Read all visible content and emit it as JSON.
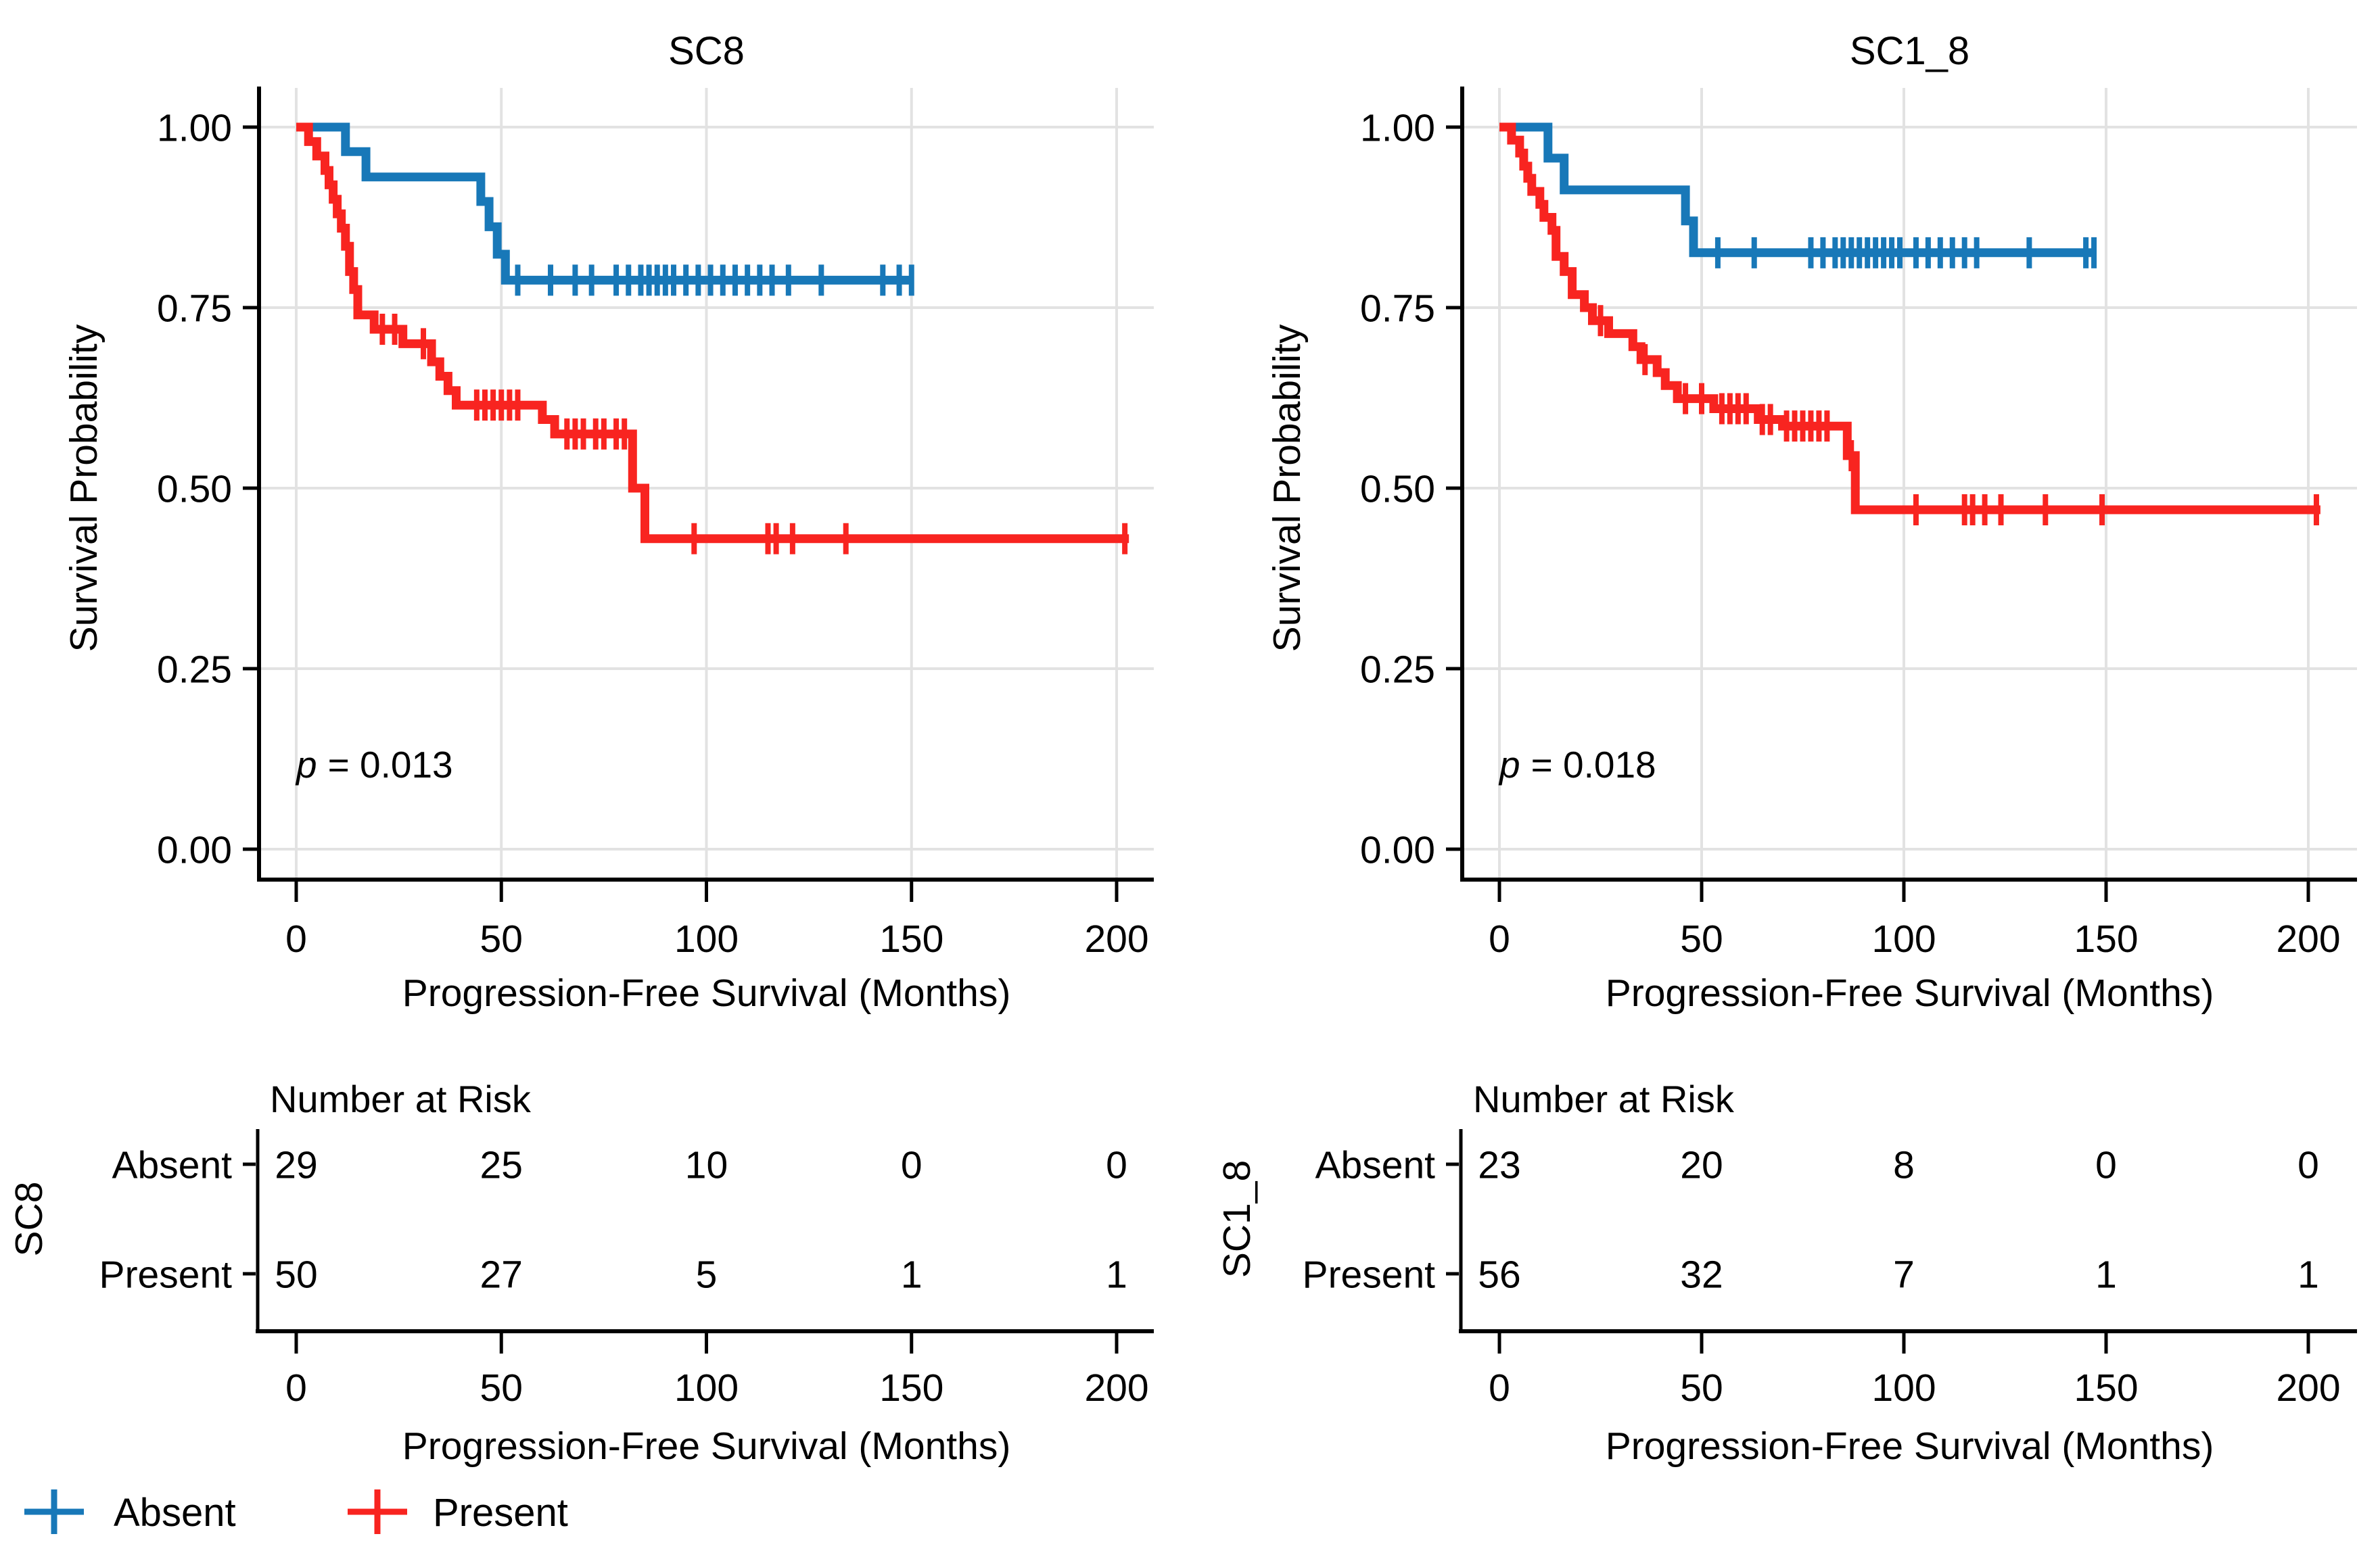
{
  "figure": {
    "background": "#ffffff",
    "colors": {
      "absent": "#1878b8",
      "present": "#f82420",
      "grid": "#e2e2e2",
      "axis": "#000000",
      "text": "#000000"
    },
    "legend": {
      "position": "bottom-left",
      "items": [
        {
          "label": "Absent",
          "color_key": "absent"
        },
        {
          "label": "Present",
          "color_key": "present"
        }
      ]
    },
    "chart_data": [
      {
        "type": "km_step",
        "title": "SC8",
        "xlabel": "Progression-Free Survival (Months)",
        "ylabel": "Survival Probability",
        "p_symbol": "p",
        "p_text": "= 0.013",
        "xlim": [
          0,
          210
        ],
        "ylim": [
          0,
          1
        ],
        "grid": "major",
        "x_ticks": [
          0,
          50,
          100,
          150,
          200
        ],
        "y_ticks": [
          {
            "label": "1.00",
            "value": 1
          },
          {
            "label": "0.75",
            "value": 0.75
          },
          {
            "label": "0.50",
            "value": 0.5
          },
          {
            "label": "0.25",
            "value": 0.25
          },
          {
            "label": "0.00",
            "value": 0
          }
        ],
        "series": [
          {
            "name": "Absent",
            "color_key": "absent",
            "steps": [
              [
                0,
                1
              ],
              [
                12,
                1
              ],
              [
                12,
                0.966
              ],
              [
                17,
                0.966
              ],
              [
                17,
                0.931
              ],
              [
                45,
                0.931
              ],
              [
                45,
                0.897
              ],
              [
                47,
                0.897
              ],
              [
                47,
                0.862
              ],
              [
                49,
                0.862
              ],
              [
                49,
                0.824
              ],
              [
                51,
                0.824
              ],
              [
                51,
                0.788
              ],
              [
                150,
                0.788
              ]
            ],
            "censor_times": [
              54,
              62,
              68,
              72,
              78,
              81,
              84,
              86,
              88,
              90,
              92,
              95,
              98,
              101,
              104,
              107,
              110,
              113,
              116,
              120,
              128,
              143,
              147,
              150
            ]
          },
          {
            "name": "Present",
            "color_key": "present",
            "steps": [
              [
                0,
                1
              ],
              [
                3,
                1
              ],
              [
                3,
                0.98
              ],
              [
                5,
                0.98
              ],
              [
                5,
                0.96
              ],
              [
                7,
                0.96
              ],
              [
                7,
                0.94
              ],
              [
                8,
                0.94
              ],
              [
                8,
                0.92
              ],
              [
                9,
                0.92
              ],
              [
                9,
                0.9
              ],
              [
                10,
                0.9
              ],
              [
                10,
                0.88
              ],
              [
                11,
                0.88
              ],
              [
                11,
                0.86
              ],
              [
                12,
                0.86
              ],
              [
                12,
                0.835
              ],
              [
                13,
                0.835
              ],
              [
                13,
                0.8
              ],
              [
                14,
                0.8
              ],
              [
                14,
                0.775
              ],
              [
                15,
                0.775
              ],
              [
                15,
                0.74
              ],
              [
                19,
                0.74
              ],
              [
                19,
                0.72
              ],
              [
                26,
                0.72
              ],
              [
                26,
                0.7
              ],
              [
                33,
                0.7
              ],
              [
                33,
                0.675
              ],
              [
                35,
                0.675
              ],
              [
                35,
                0.655
              ],
              [
                37,
                0.655
              ],
              [
                37,
                0.635
              ],
              [
                39,
                0.635
              ],
              [
                39,
                0.615
              ],
              [
                60,
                0.615
              ],
              [
                60,
                0.595
              ],
              [
                63,
                0.595
              ],
              [
                63,
                0.575
              ],
              [
                82,
                0.575
              ],
              [
                82,
                0.5
              ],
              [
                85,
                0.5
              ],
              [
                85,
                0.43
              ],
              [
                203,
                0.43
              ]
            ],
            "censor_times": [
              21,
              24,
              31,
              44,
              46,
              48,
              50,
              52,
              54,
              66,
              68,
              70,
              73,
              75,
              78,
              80,
              97,
              115,
              117,
              121,
              134,
              202
            ]
          }
        ],
        "risk_table": {
          "heading": "Number at Risk",
          "group_label": "SC8",
          "xlabel": "Progression-Free Survival (Months)",
          "x_ticks": [
            0,
            50,
            100,
            150,
            200
          ],
          "rows": [
            {
              "label": "Absent",
              "color_key": "absent",
              "values": [
                "29",
                "25",
                "10",
                "0",
                "0"
              ]
            },
            {
              "label": "Present",
              "color_key": "present",
              "values": [
                "50",
                "27",
                "5",
                "1",
                "1"
              ]
            }
          ]
        }
      },
      {
        "type": "km_step",
        "title": "SC1_8",
        "xlabel": "Progression-Free Survival (Months)",
        "ylabel": "Survival Probability",
        "p_symbol": "p",
        "p_text": "= 0.018",
        "xlim": [
          0,
          210
        ],
        "ylim": [
          0,
          1
        ],
        "grid": "major",
        "x_ticks": [
          0,
          50,
          100,
          150,
          200
        ],
        "y_ticks": [
          {
            "label": "1.00",
            "value": 1
          },
          {
            "label": "0.75",
            "value": 0.75
          },
          {
            "label": "0.50",
            "value": 0.5
          },
          {
            "label": "0.25",
            "value": 0.25
          },
          {
            "label": "0.00",
            "value": 0
          }
        ],
        "series": [
          {
            "name": "Absent",
            "color_key": "absent",
            "steps": [
              [
                0,
                1
              ],
              [
                12,
                1
              ],
              [
                12,
                0.957
              ],
              [
                16,
                0.957
              ],
              [
                16,
                0.913
              ],
              [
                46,
                0.913
              ],
              [
                46,
                0.87
              ],
              [
                48,
                0.87
              ],
              [
                48,
                0.826
              ],
              [
                147,
                0.826
              ]
            ],
            "censor_times": [
              54,
              63,
              77,
              80,
              83,
              85,
              87,
              89,
              91,
              93,
              95,
              97,
              99,
              103,
              106,
              109,
              112,
              115,
              118,
              131,
              145,
              147
            ]
          },
          {
            "name": "Present",
            "color_key": "present",
            "steps": [
              [
                0,
                1
              ],
              [
                3,
                1
              ],
              [
                3,
                0.982
              ],
              [
                5,
                0.982
              ],
              [
                5,
                0.964
              ],
              [
                6,
                0.964
              ],
              [
                6,
                0.946
              ],
              [
                7,
                0.946
              ],
              [
                7,
                0.929
              ],
              [
                8,
                0.929
              ],
              [
                8,
                0.911
              ],
              [
                10,
                0.911
              ],
              [
                10,
                0.893
              ],
              [
                11,
                0.893
              ],
              [
                11,
                0.875
              ],
              [
                13,
                0.875
              ],
              [
                13,
                0.857
              ],
              [
                14,
                0.857
              ],
              [
                14,
                0.821
              ],
              [
                16,
                0.821
              ],
              [
                16,
                0.8
              ],
              [
                18,
                0.8
              ],
              [
                18,
                0.768
              ],
              [
                21,
                0.768
              ],
              [
                21,
                0.75
              ],
              [
                23,
                0.75
              ],
              [
                23,
                0.732
              ],
              [
                27,
                0.732
              ],
              [
                27,
                0.714
              ],
              [
                33,
                0.714
              ],
              [
                33,
                0.696
              ],
              [
                35,
                0.696
              ],
              [
                35,
                0.678
              ],
              [
                39,
                0.678
              ],
              [
                39,
                0.66
              ],
              [
                41,
                0.66
              ],
              [
                41,
                0.642
              ],
              [
                44,
                0.642
              ],
              [
                44,
                0.624
              ],
              [
                53,
                0.624
              ],
              [
                53,
                0.61
              ],
              [
                64,
                0.61
              ],
              [
                64,
                0.595
              ],
              [
                70,
                0.595
              ],
              [
                70,
                0.586
              ],
              [
                86,
                0.586
              ],
              [
                86,
                0.545
              ],
              [
                88,
                0.545
              ],
              [
                88,
                0.47
              ],
              [
                203,
                0.47
              ]
            ],
            "censor_times": [
              25,
              36,
              46,
              50,
              55,
              57,
              59,
              61,
              65,
              67,
              71,
              73,
              75,
              77,
              79,
              81,
              87,
              103,
              115,
              117,
              120,
              124,
              135,
              149,
              202
            ]
          }
        ],
        "risk_table": {
          "heading": "Number at Risk",
          "group_label": "SC1_8",
          "xlabel": "Progression-Free Survival (Months)",
          "x_ticks": [
            0,
            50,
            100,
            150,
            200
          ],
          "rows": [
            {
              "label": "Absent",
              "color_key": "absent",
              "values": [
                "23",
                "20",
                "8",
                "0",
                "0"
              ]
            },
            {
              "label": "Present",
              "color_key": "present",
              "values": [
                "56",
                "32",
                "7",
                "1",
                "1"
              ]
            }
          ]
        }
      }
    ]
  }
}
